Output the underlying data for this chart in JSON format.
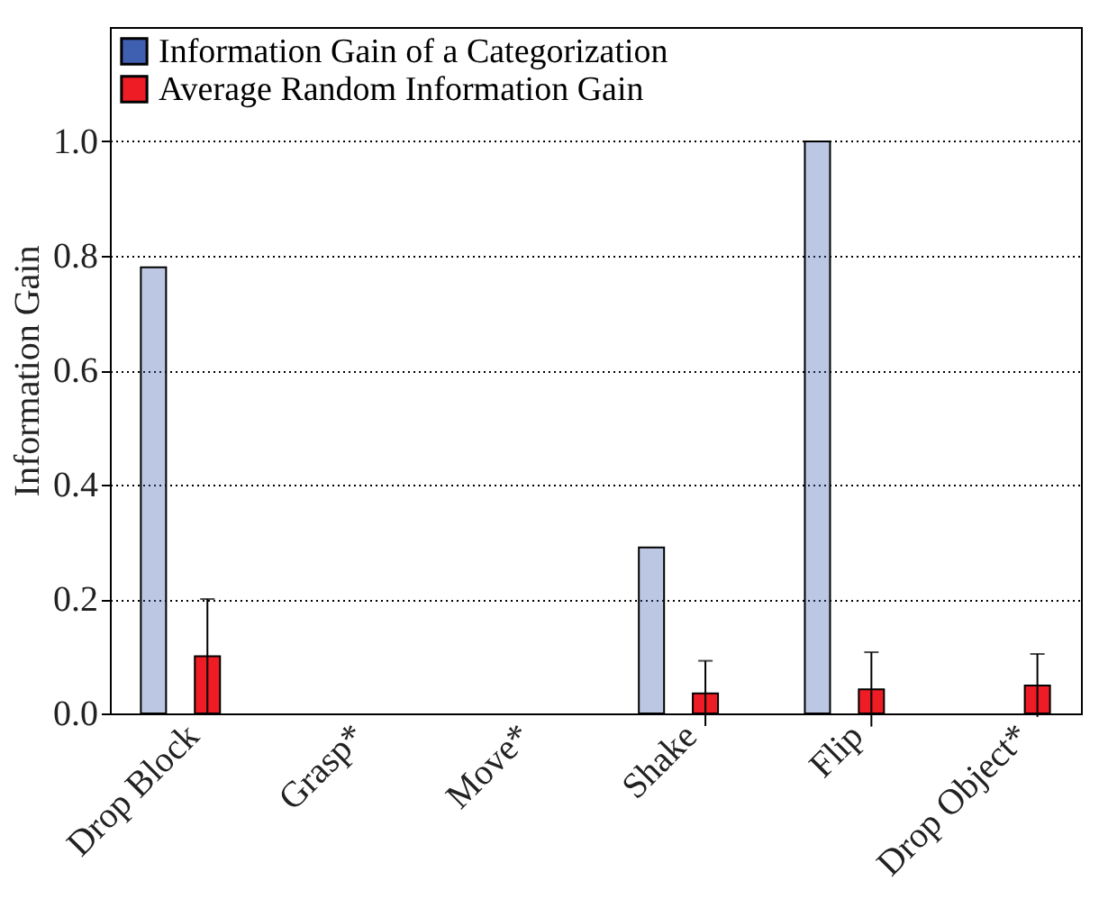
{
  "chart_data": {
    "type": "bar",
    "ylabel": "Information Gain",
    "categories": [
      "Drop Block",
      "Grasp*",
      "Move*",
      "Shake",
      "Flip",
      "Drop Object*"
    ],
    "series": [
      {
        "name": "Information Gain of a Categorization",
        "color": "#3f5fb0",
        "values": [
          0.78,
          0,
          0,
          0.29,
          1.0,
          0
        ]
      },
      {
        "name": "Average Random Information Gain",
        "color": "#ee1c24",
        "values": [
          0.1,
          0,
          0,
          0.035,
          0.042,
          0.049
        ],
        "errors": [
          0.1,
          null,
          null,
          0.057,
          0.065,
          0.055
        ]
      }
    ],
    "ylim": [
      0,
      1.2
    ],
    "yticks": [
      {
        "value": 0,
        "label": "0.0"
      },
      0.2,
      0.4,
      0.6,
      0.8,
      {
        "value": 1,
        "label": "1.0"
      }
    ],
    "grid": "y",
    "legend": "top left"
  }
}
